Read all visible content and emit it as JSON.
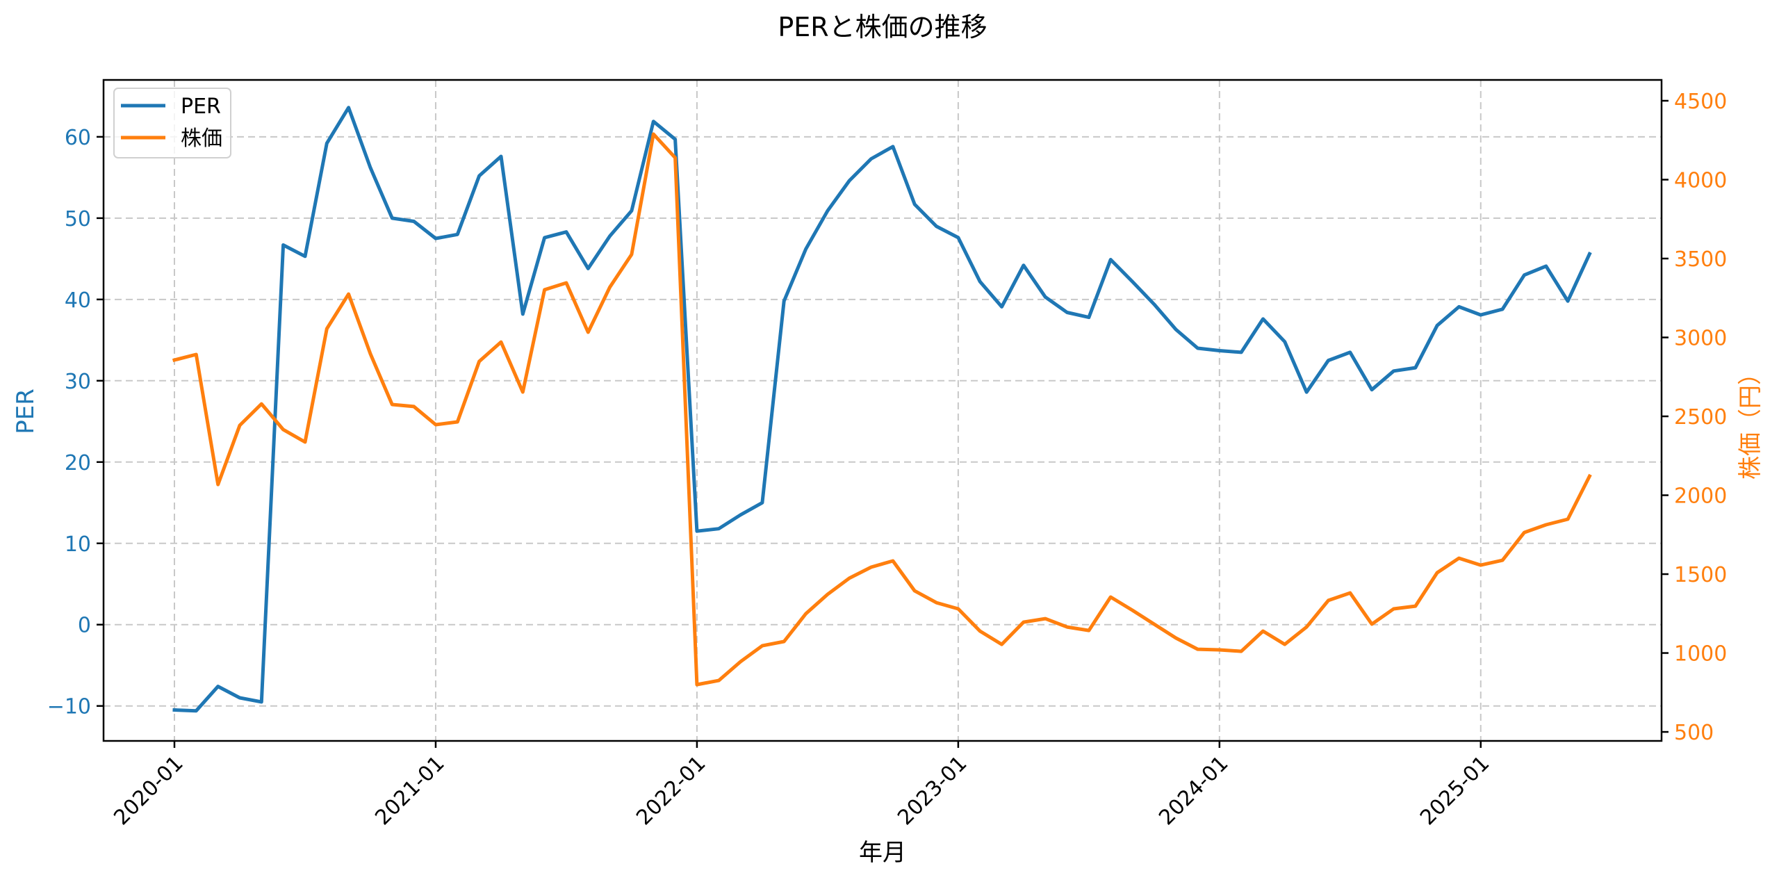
{
  "chart_data": {
    "type": "line",
    "title": "PERと株価の推移",
    "xlabel": "年月",
    "ylabel": "PER",
    "ylabel_right": "株価（円）",
    "ylim": [
      -14.3,
      67
    ],
    "ylim_right": [
      443,
      4632
    ],
    "grid": true,
    "legend_position": "upper left",
    "x": [
      "2020-01",
      "2020-02",
      "2020-03",
      "2020-04",
      "2020-05",
      "2020-06",
      "2020-07",
      "2020-08",
      "2020-09",
      "2020-10",
      "2020-11",
      "2020-12",
      "2021-01",
      "2021-02",
      "2021-03",
      "2021-04",
      "2021-05",
      "2021-06",
      "2021-07",
      "2021-08",
      "2021-09",
      "2021-10",
      "2021-11",
      "2021-12",
      "2022-01",
      "2022-02",
      "2022-03",
      "2022-04",
      "2022-05",
      "2022-06",
      "2022-07",
      "2022-08",
      "2022-09",
      "2022-10",
      "2022-11",
      "2022-12",
      "2023-01",
      "2023-02",
      "2023-03",
      "2023-04",
      "2023-05",
      "2023-06",
      "2023-07",
      "2023-08",
      "2023-09",
      "2023-10",
      "2023-11",
      "2023-12",
      "2024-01",
      "2024-02",
      "2024-03",
      "2024-04",
      "2024-05",
      "2024-06",
      "2024-07",
      "2024-08",
      "2024-09",
      "2024-10",
      "2024-11",
      "2024-12",
      "2025-01",
      "2025-02",
      "2025-03",
      "2025-04",
      "2025-05",
      "2025-06"
    ],
    "x_ticks": [
      "2020-01",
      "2021-01",
      "2022-01",
      "2023-01",
      "2024-01",
      "2025-01"
    ],
    "y_ticks_left": [
      -10,
      0,
      10,
      20,
      30,
      40,
      50,
      60
    ],
    "y_ticks_right": [
      500,
      1000,
      1500,
      2000,
      2500,
      3000,
      3500,
      4000,
      4500
    ],
    "series": [
      {
        "name": "PER",
        "axis": "left",
        "color": "#1f77b4",
        "values": [
          -10.5,
          -10.6,
          -7.6,
          -9.0,
          -9.5,
          46.7,
          45.3,
          59.2,
          63.6,
          56.2,
          50.0,
          49.6,
          47.5,
          48.0,
          55.2,
          57.6,
          38.2,
          47.6,
          48.3,
          43.8,
          47.8,
          50.9,
          61.9,
          59.7,
          11.5,
          11.8,
          13.5,
          15.0,
          39.8,
          46.2,
          50.9,
          54.6,
          57.3,
          58.8,
          51.7,
          49.0,
          47.6,
          42.2,
          39.1,
          44.2,
          40.3,
          38.4,
          37.8,
          44.9,
          42.2,
          39.4,
          36.3,
          34.0,
          33.7,
          33.5,
          37.6,
          34.8,
          28.6,
          32.5,
          33.5,
          28.9,
          31.2,
          31.6,
          36.8,
          39.1,
          38.1,
          38.8,
          43.0,
          44.1,
          39.8,
          45.6
        ]
      },
      {
        "name": "株価",
        "axis": "right",
        "color": "#ff7f0e",
        "values": [
          2857,
          2892,
          2068,
          2443,
          2579,
          2416,
          2337,
          3055,
          3275,
          2896,
          2575,
          2562,
          2447,
          2465,
          2848,
          2971,
          2654,
          3302,
          3346,
          3033,
          3319,
          3526,
          4289,
          4139,
          800,
          826,
          945,
          1046,
          1073,
          1249,
          1372,
          1474,
          1544,
          1584,
          1394,
          1319,
          1280,
          1139,
          1055,
          1196,
          1218,
          1165,
          1143,
          1355,
          1271,
          1183,
          1095,
          1024,
          1020,
          1011,
          1139,
          1055,
          1165,
          1333,
          1381,
          1183,
          1280,
          1297,
          1509,
          1601,
          1557,
          1588,
          1764,
          1813,
          1848,
          2121
        ]
      }
    ]
  },
  "legend": {
    "items": [
      {
        "label": "PER",
        "color": "#1f77b4"
      },
      {
        "label": "株価",
        "color": "#ff7f0e"
      }
    ]
  }
}
